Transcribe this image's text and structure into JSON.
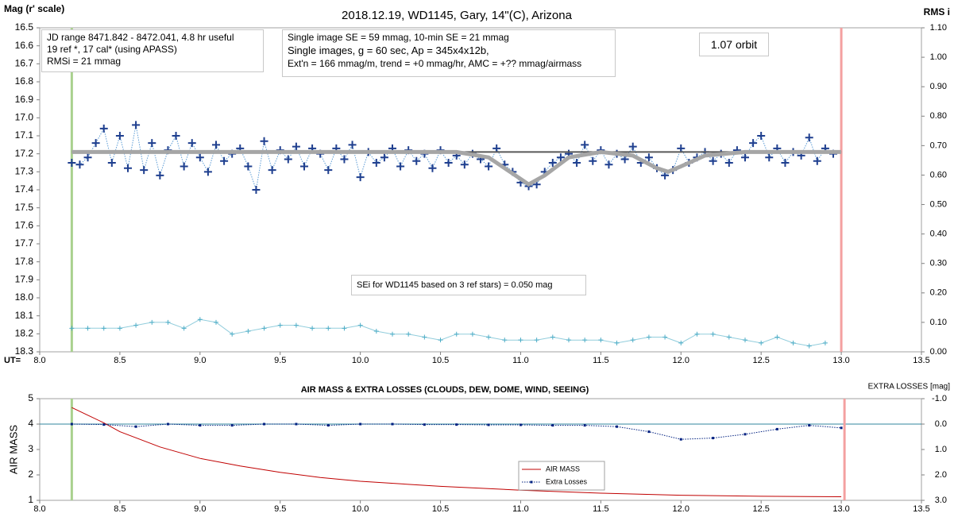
{
  "chart_data": [
    {
      "type": "line",
      "title": "2018.12.19, WD1145, Gary, 14\"(C), Arizona",
      "ylabel": "Mag (r' scale)",
      "y2label": "RMS i",
      "xlabel": "UT=",
      "xlim": [
        8.0,
        13.5
      ],
      "xticks": [
        {
          "value": 8,
          "label": "8.0"
        },
        8.5,
        {
          "value": 9,
          "label": "9.0"
        },
        9.5,
        {
          "value": 10,
          "label": "10.0"
        },
        10.5,
        {
          "value": 11,
          "label": "11.0"
        },
        11.5,
        {
          "value": 12,
          "label": "12.0"
        },
        12.5,
        {
          "value": 13,
          "label": "13.0"
        },
        13.5
      ],
      "ylim": [
        16.5,
        18.3
      ],
      "y_inverted": true,
      "yticks": [
        16.5,
        16.6,
        16.7,
        16.8,
        16.9,
        {
          "value": 17,
          "label": "17.0"
        },
        17.1,
        17.2,
        17.3,
        17.4,
        17.5,
        17.6,
        17.7,
        17.8,
        17.9,
        {
          "value": 18,
          "label": "18.0"
        },
        18.1,
        18.2,
        18.3
      ],
      "y2lim": [
        0,
        1.1
      ],
      "y2_inverted": false,
      "y2ticks": [
        {
          "value": 0,
          "label": "0.00"
        },
        {
          "value": 0.1,
          "label": "0.10"
        },
        {
          "value": 0.2,
          "label": "0.20"
        },
        {
          "value": 0.3,
          "label": "0.30"
        },
        {
          "value": 0.4,
          "label": "0.40"
        },
        {
          "value": 0.5,
          "label": "0.50"
        },
        {
          "value": 0.6,
          "label": "0.60"
        },
        {
          "value": 0.7,
          "label": "0.70"
        },
        {
          "value": 0.8,
          "label": "0.80"
        },
        {
          "value": 0.9,
          "label": "0.90"
        },
        {
          "value": 1,
          "label": "1.00"
        },
        {
          "value": 1.1,
          "label": "1.10"
        }
      ],
      "vlines": [
        {
          "x": 8.2,
          "color": "#a9d18e"
        },
        {
          "x": 13.0,
          "color": "#f4a0a0"
        }
      ],
      "series": [
        {
          "color": "#1f3f8f",
          "axis": "y",
          "marker": "+",
          "line": "dotted",
          "line_color": "#5b9bd5",
          "x": [
            8.2,
            8.25,
            8.3,
            8.35,
            8.4,
            8.45,
            8.5,
            8.55,
            8.6,
            8.65,
            8.7,
            8.75,
            8.8,
            8.85,
            8.9,
            8.95,
            9.0,
            9.05,
            9.1,
            9.15,
            9.2,
            9.25,
            9.3,
            9.35,
            9.4,
            9.45,
            9.5,
            9.55,
            9.6,
            9.65,
            9.7,
            9.75,
            9.8,
            9.85,
            9.9,
            9.95,
            10.0,
            10.05,
            10.1,
            10.15,
            10.2,
            10.25,
            10.3,
            10.35,
            10.4,
            10.45,
            10.5,
            10.55,
            10.6,
            10.65,
            10.7,
            10.75,
            10.8,
            10.85,
            10.9,
            10.95,
            11.0,
            11.05,
            11.1,
            11.15,
            11.2,
            11.25,
            11.3,
            11.35,
            11.4,
            11.45,
            11.5,
            11.55,
            11.6,
            11.65,
            11.7,
            11.75,
            11.8,
            11.85,
            11.9,
            11.95,
            12.0,
            12.05,
            12.1,
            12.15,
            12.2,
            12.25,
            12.3,
            12.35,
            12.4,
            12.45,
            12.5,
            12.55,
            12.6,
            12.65,
            12.7,
            12.75,
            12.8,
            12.85,
            12.9,
            12.95
          ],
          "values": [
            17.25,
            17.26,
            17.22,
            17.14,
            17.06,
            17.25,
            17.1,
            17.28,
            17.04,
            17.29,
            17.14,
            17.32,
            17.18,
            17.1,
            17.27,
            17.14,
            17.22,
            17.3,
            17.15,
            17.24,
            17.2,
            17.17,
            17.27,
            17.4,
            17.13,
            17.29,
            17.18,
            17.23,
            17.16,
            17.27,
            17.17,
            17.2,
            17.29,
            17.17,
            17.23,
            17.15,
            17.33,
            17.19,
            17.25,
            17.22,
            17.17,
            17.27,
            17.18,
            17.24,
            17.2,
            17.28,
            17.18,
            17.25,
            17.21,
            17.26,
            17.2,
            17.23,
            17.27,
            17.17,
            17.26,
            17.3,
            17.36,
            17.38,
            17.37,
            17.3,
            17.25,
            17.22,
            17.2,
            17.25,
            17.15,
            17.24,
            17.18,
            17.26,
            17.2,
            17.23,
            17.16,
            17.25,
            17.22,
            17.28,
            17.32,
            17.29,
            17.17,
            17.25,
            17.22,
            17.19,
            17.24,
            17.2,
            17.25,
            17.18,
            17.22,
            17.14,
            17.1,
            17.22,
            17.17,
            17.25,
            17.19,
            17.21,
            17.11,
            17.24,
            17.17,
            17.2
          ]
        },
        {
          "color": "#595959",
          "axis": "y",
          "line": "solid",
          "width": 2,
          "x": [
            8.2,
            13.0
          ],
          "values": [
            17.19,
            17.19
          ]
        },
        {
          "color": "#a6a6a6",
          "axis": "y",
          "line": "solid",
          "width": 5,
          "x": [
            8.2,
            10.6,
            10.8,
            10.95,
            11.05,
            11.15,
            11.3,
            11.5,
            11.7,
            11.85,
            11.92,
            12.0,
            12.15,
            12.4,
            13.0
          ],
          "values": [
            17.19,
            17.19,
            17.22,
            17.31,
            17.37,
            17.32,
            17.22,
            17.19,
            17.21,
            17.28,
            17.3,
            17.27,
            17.21,
            17.19,
            17.19
          ]
        },
        {
          "color": "#4bacc6",
          "axis": "y2",
          "marker": "+",
          "marker_size": 3,
          "line": "solid",
          "line_color": "#92cddc",
          "x": [
            8.2,
            8.3,
            8.4,
            8.5,
            8.6,
            8.7,
            8.8,
            8.9,
            9.0,
            9.1,
            9.2,
            9.3,
            9.4,
            9.5,
            9.6,
            9.7,
            9.8,
            9.9,
            10.0,
            10.1,
            10.2,
            10.3,
            10.4,
            10.5,
            10.6,
            10.7,
            10.8,
            10.9,
            11.0,
            11.1,
            11.2,
            11.3,
            11.4,
            11.5,
            11.6,
            11.7,
            11.8,
            11.9,
            12.0,
            12.1,
            12.2,
            12.3,
            12.4,
            12.5,
            12.6,
            12.7,
            12.8,
            12.9
          ],
          "values": [
            0.08,
            0.08,
            0.08,
            0.08,
            0.09,
            0.1,
            0.1,
            0.08,
            0.11,
            0.1,
            0.06,
            0.07,
            0.08,
            0.09,
            0.09,
            0.08,
            0.08,
            0.08,
            0.09,
            0.07,
            0.06,
            0.06,
            0.05,
            0.04,
            0.06,
            0.06,
            0.05,
            0.04,
            0.04,
            0.04,
            0.05,
            0.04,
            0.04,
            0.04,
            0.03,
            0.04,
            0.05,
            0.05,
            0.03,
            0.06,
            0.06,
            0.05,
            0.04,
            0.03,
            0.05,
            0.03,
            0.02,
            0.03
          ]
        }
      ],
      "annotations": [
        {
          "lines": [
            "JD range 8471.842 - 8472.041, 4.8 hr useful",
            "19 ref *, 17 cal* (using APASS)",
            "RMSi = 21 mmag"
          ]
        },
        {
          "lines": [
            "Single image SE = 59 mmag, 10-min SE = 21 mmag",
            "Single images, g = 60 sec, Ap = 345x4x12b,",
            "Ext'n = 166 mmag/m, trend = +0 mmag/hr, AMC = +?? mmag/airmass"
          ]
        },
        {
          "lines": [
            "1.07 orbit"
          ]
        },
        {
          "lines": [
            "SEi for WD1145 based on 3 ref stars) = 0.050 mag"
          ]
        }
      ]
    },
    {
      "type": "line",
      "title": "AIR MASS & EXTRA LOSSES (CLOUDS, DEW, DOME, WIND, SEEING)",
      "ylabel": "AIR MASS",
      "y2label": "EXTRA LOSSES [mag]",
      "xlim": [
        8.0,
        13.5
      ],
      "xticks": [
        {
          "value": 8,
          "label": "8.0"
        },
        8.5,
        {
          "value": 9,
          "label": "9.0"
        },
        9.5,
        {
          "value": 10,
          "label": "10.0"
        },
        10.5,
        {
          "value": 11,
          "label": "11.0"
        },
        11.5,
        {
          "value": 12,
          "label": "12.0"
        },
        12.5,
        {
          "value": 13,
          "label": "13.0"
        },
        13.5
      ],
      "ylim": [
        1,
        5
      ],
      "y_inverted": false,
      "yticks": [
        1,
        2,
        3,
        4,
        5
      ],
      "y2lim": [
        -1,
        3
      ],
      "y2_inverted": true,
      "y2ticks": [
        {
          "value": -1,
          "label": "-1.0"
        },
        {
          "value": 0,
          "label": "0.0"
        },
        {
          "value": 1,
          "label": "1.0"
        },
        {
          "value": 2,
          "label": "2.0"
        },
        {
          "value": 3,
          "label": "3.0"
        }
      ],
      "vlines": [
        {
          "x": 8.2,
          "color": "#a9d18e"
        },
        {
          "x": 13.02,
          "color": "#f4a0a0"
        }
      ],
      "ref_line": {
        "value": 0,
        "axis": "y2",
        "color": "#31859c"
      },
      "legend": true,
      "series": [
        {
          "name": "AIR MASS",
          "color": "#c00000",
          "axis": "y",
          "line": "solid",
          "width": 1,
          "x": [
            8.2,
            8.3,
            8.4,
            8.5,
            8.75,
            9.0,
            9.25,
            9.5,
            9.75,
            10.0,
            10.5,
            11.0,
            11.5,
            12.0,
            12.5,
            13.0
          ],
          "values": [
            4.65,
            4.35,
            4.05,
            3.7,
            3.1,
            2.65,
            2.35,
            2.1,
            1.9,
            1.75,
            1.55,
            1.4,
            1.28,
            1.2,
            1.16,
            1.14
          ]
        },
        {
          "name": "Extra Losses",
          "color": "#002080",
          "axis": "y2",
          "marker": "square",
          "line": "dotted",
          "width": 1,
          "x": [
            8.2,
            8.4,
            8.6,
            8.8,
            9.0,
            9.2,
            9.4,
            9.6,
            9.8,
            10.0,
            10.2,
            10.4,
            10.6,
            10.8,
            11.0,
            11.2,
            11.4,
            11.6,
            11.8,
            12.0,
            12.2,
            12.4,
            12.6,
            12.8,
            13.0
          ],
          "values": [
            0.0,
            0.02,
            0.1,
            0.0,
            0.05,
            0.05,
            0.0,
            0.0,
            0.05,
            0.0,
            0.0,
            0.02,
            0.02,
            0.03,
            0.03,
            0.05,
            0.05,
            0.1,
            0.3,
            0.6,
            0.55,
            0.4,
            0.2,
            0.05,
            0.15
          ]
        }
      ]
    }
  ]
}
